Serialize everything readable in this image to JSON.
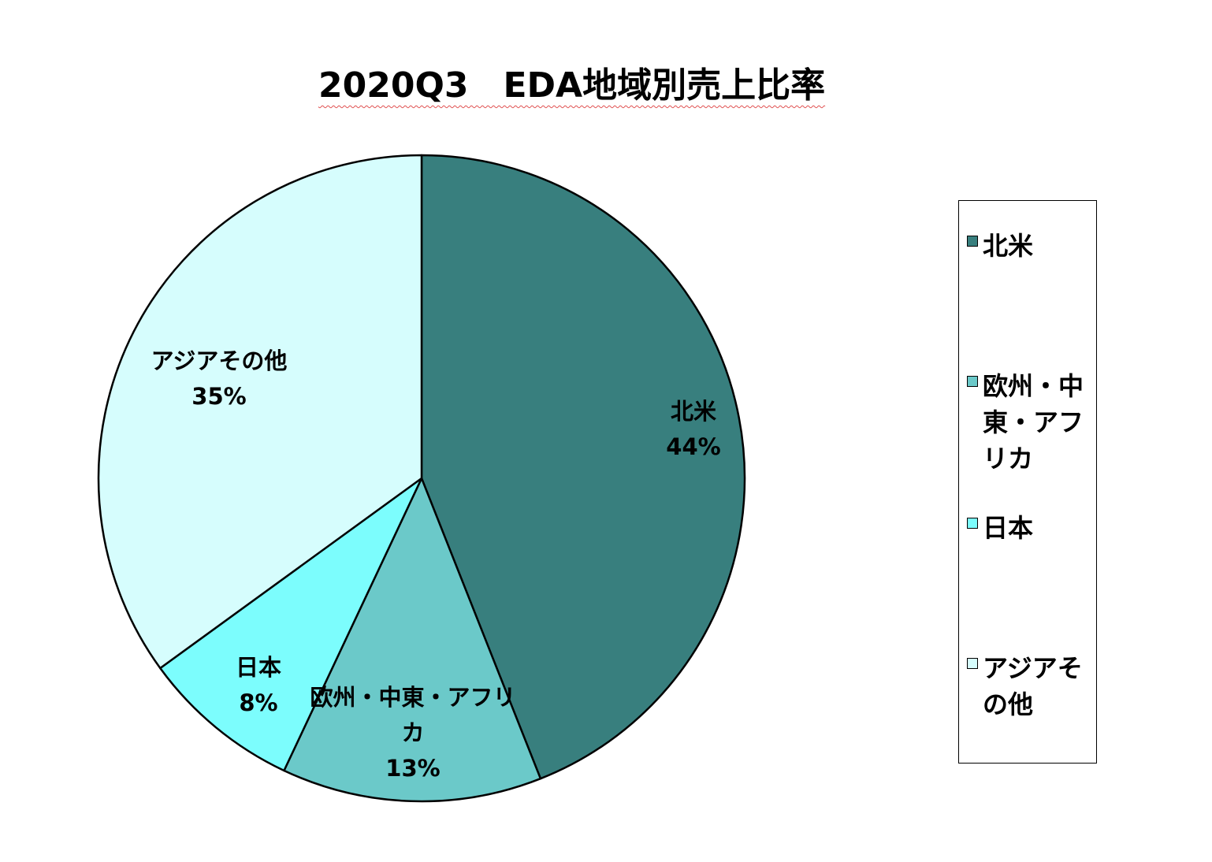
{
  "chart_data": {
    "type": "pie",
    "title": "2020Q3　EDA地域別売上比率",
    "categories": [
      "北米",
      "欧州・中東・アフリカ",
      "日本",
      "アジアその他"
    ],
    "values": [
      44,
      13,
      8,
      35
    ],
    "labels": [
      "44%",
      "13%",
      "8%",
      "35%"
    ],
    "colors": [
      "#387f7e",
      "#6bc9c9",
      "#7cfdfd",
      "#d6fdfd"
    ],
    "legend_position": "right",
    "start_angle": "12 o'clock",
    "direction": "clockwise"
  }
}
